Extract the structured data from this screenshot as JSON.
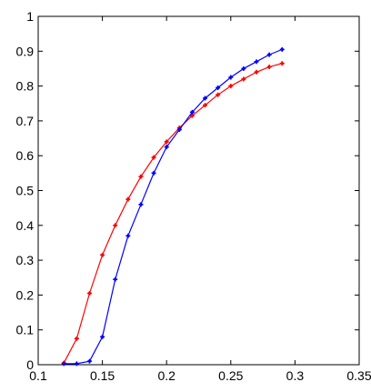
{
  "chart_data": {
    "type": "line",
    "title": "",
    "xlabel": "",
    "ylabel": "",
    "xlim": [
      0.1,
      0.35
    ],
    "ylim": [
      0,
      1
    ],
    "grid": false,
    "legend": "none",
    "x_ticks": [
      0.1,
      0.15,
      0.2,
      0.25,
      0.3,
      0.35
    ],
    "x_tick_labels": [
      "0.1",
      "0.15",
      "0.2",
      "0.25",
      "0.3",
      "0.35"
    ],
    "y_ticks": [
      0,
      0.1,
      0.2,
      0.3,
      0.4,
      0.5,
      0.6,
      0.7,
      0.8,
      0.9,
      1
    ],
    "y_tick_labels": [
      "0",
      "0.1",
      "0.2",
      "0.3",
      "0.4",
      "0.5",
      "0.6",
      "0.7",
      "0.8",
      "0.9",
      "1"
    ],
    "series": [
      {
        "color": "#ff0000",
        "x": [
          0.12,
          0.13,
          0.14,
          0.15,
          0.16,
          0.17,
          0.18,
          0.19,
          0.2,
          0.21,
          0.22,
          0.23,
          0.24,
          0.25,
          0.26,
          0.27,
          0.28,
          0.29
        ],
        "y": [
          0.005,
          0.075,
          0.205,
          0.315,
          0.4,
          0.475,
          0.54,
          0.595,
          0.64,
          0.68,
          0.715,
          0.745,
          0.775,
          0.8,
          0.82,
          0.84,
          0.855,
          0.865
        ]
      },
      {
        "color": "#0000ff",
        "x": [
          0.12,
          0.13,
          0.14,
          0.15,
          0.16,
          0.17,
          0.18,
          0.19,
          0.2,
          0.21,
          0.22,
          0.23,
          0.24,
          0.25,
          0.26,
          0.27,
          0.28,
          0.29
        ],
        "y": [
          0.003,
          0.003,
          0.01,
          0.08,
          0.245,
          0.37,
          0.46,
          0.55,
          0.625,
          0.675,
          0.725,
          0.765,
          0.795,
          0.825,
          0.85,
          0.87,
          0.89,
          0.905
        ]
      }
    ]
  }
}
